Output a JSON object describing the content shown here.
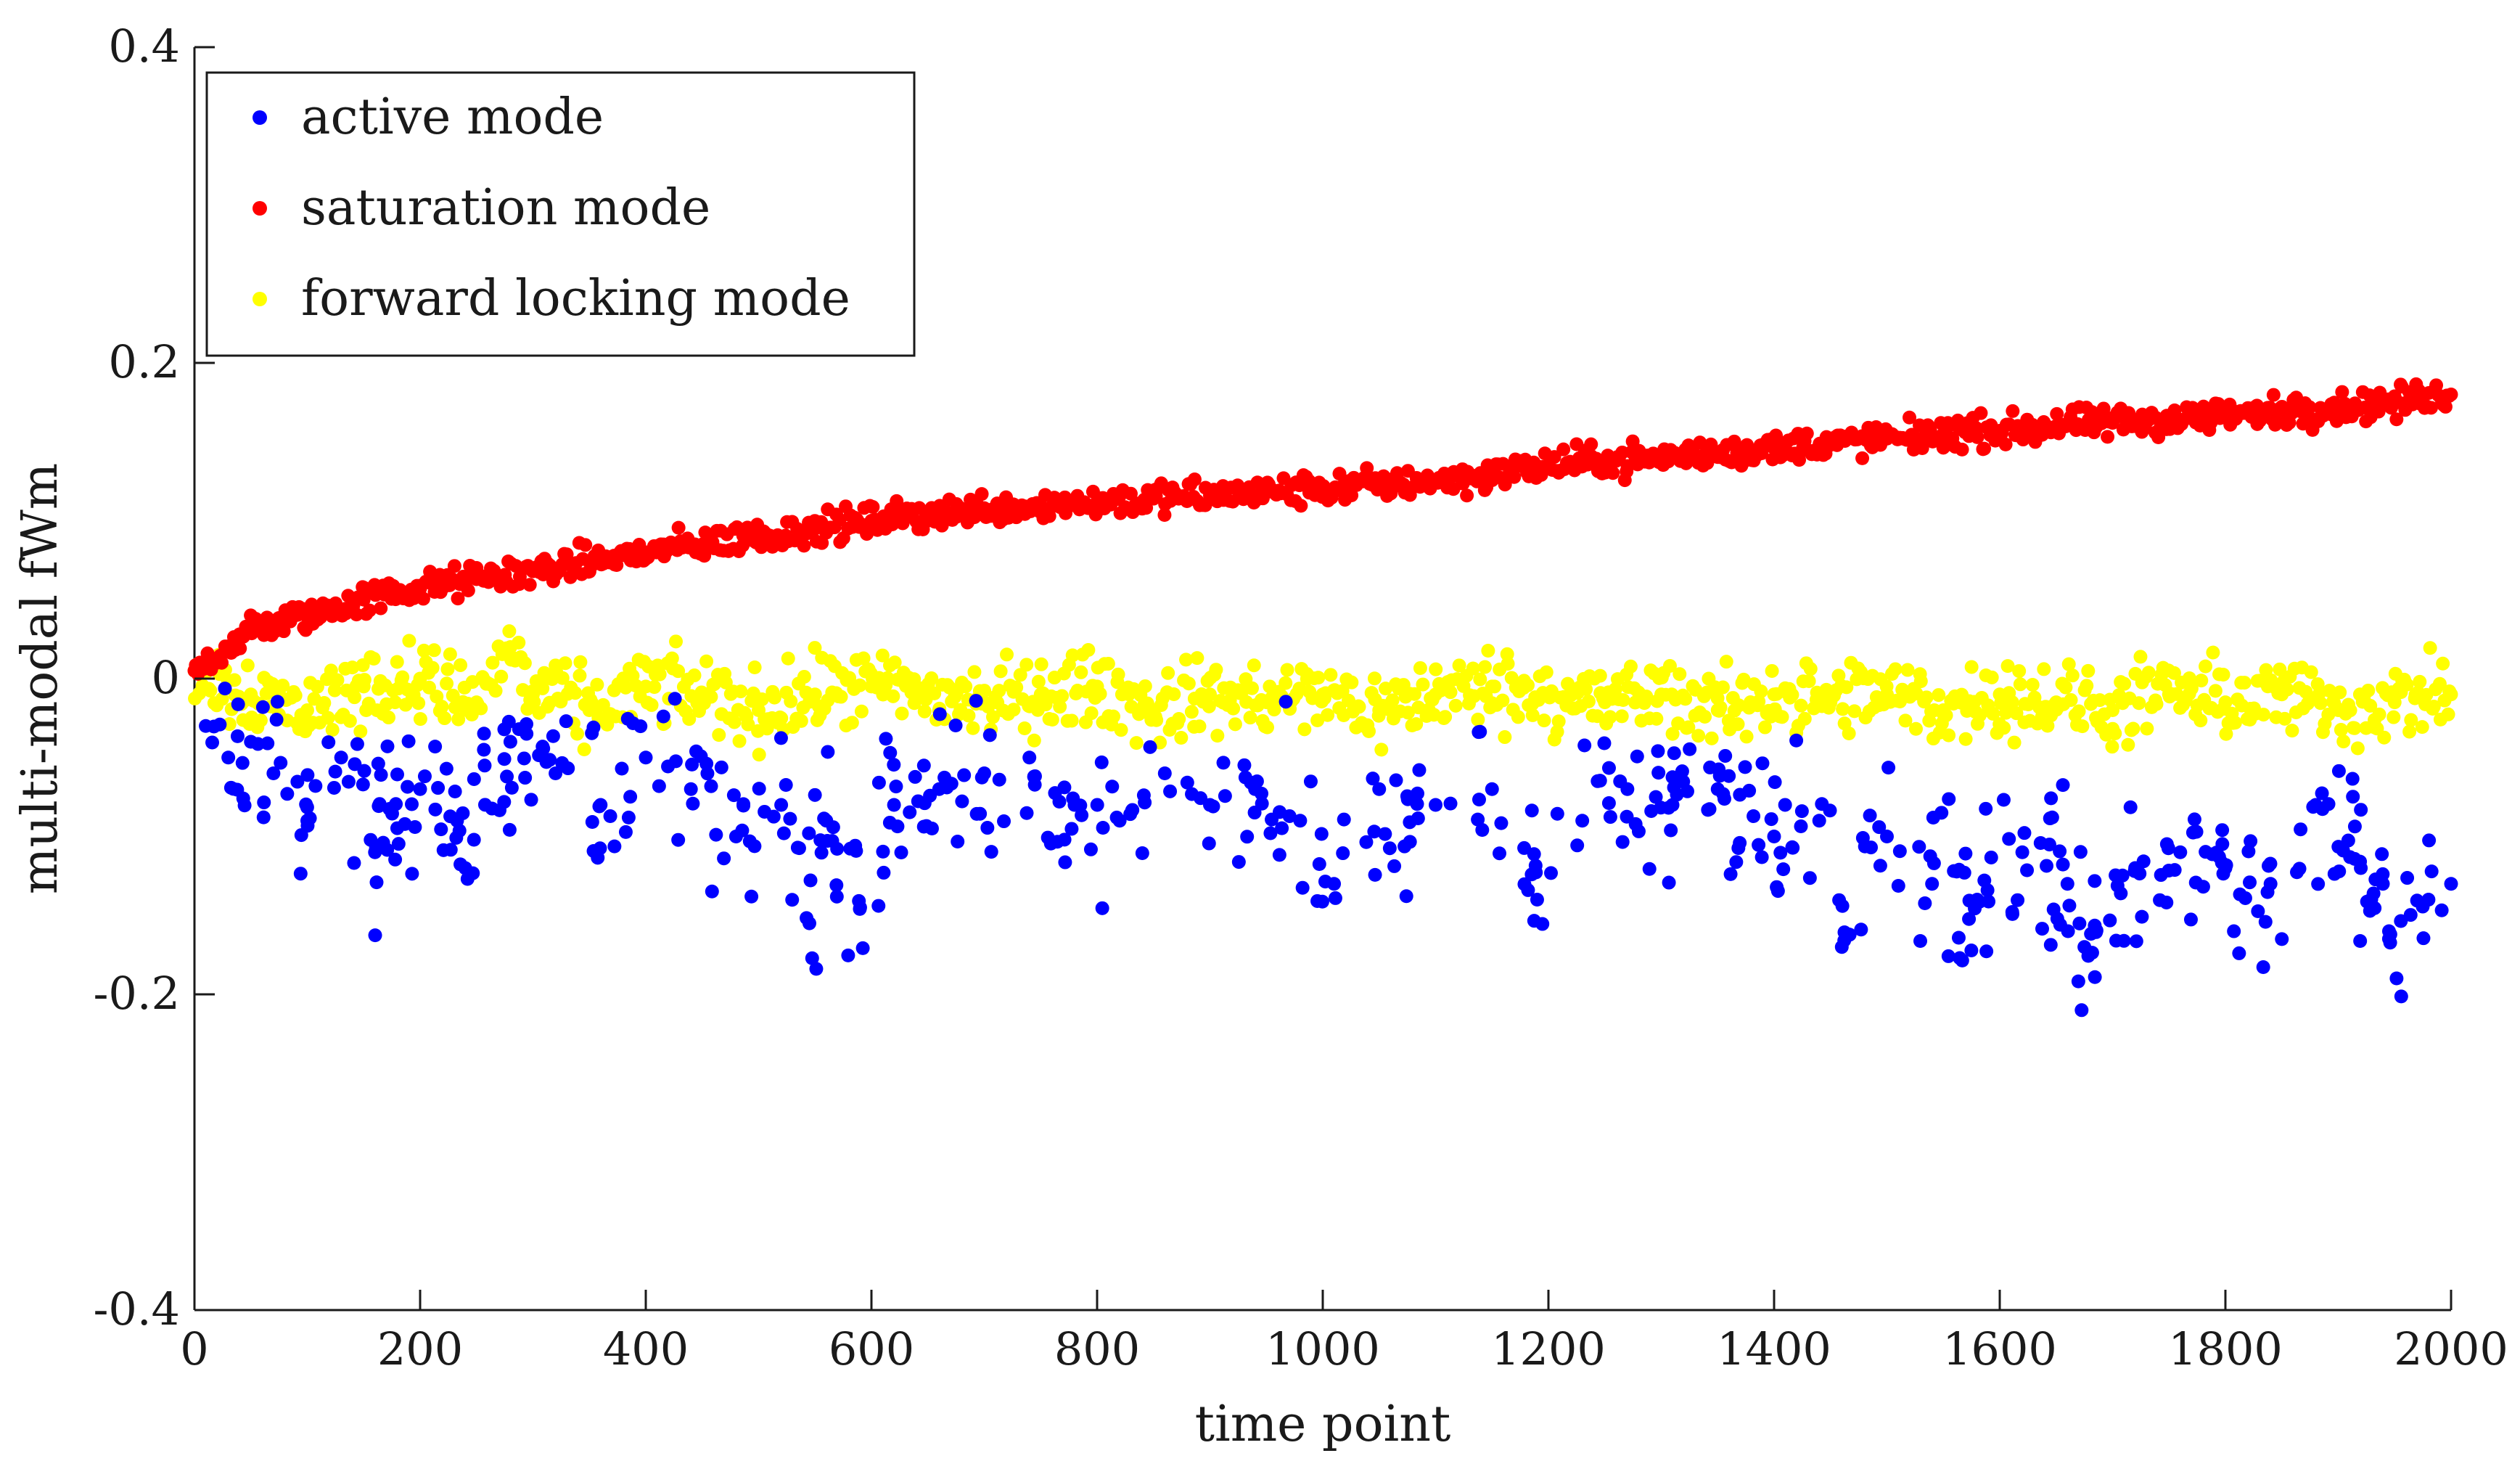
{
  "chart_data": {
    "type": "scatter",
    "title": "",
    "xlabel": "time point",
    "ylabel": "multi-modal fWm",
    "xlim": [
      0,
      2000
    ],
    "ylim": [
      -0.4,
      0.4
    ],
    "x_ticks": [
      0,
      200,
      400,
      600,
      800,
      1000,
      1200,
      1400,
      1600,
      1800,
      2000
    ],
    "x_tick_labels": [
      "0",
      "200",
      "400",
      "600",
      "800",
      "1000",
      "1200",
      "1400",
      "1600",
      "1800",
      "2000"
    ],
    "y_ticks": [
      -0.4,
      -0.2,
      0,
      0.2,
      0.4
    ],
    "y_tick_labels": [
      "-0.4",
      "-0.2",
      "0",
      "0.2",
      "0.4"
    ],
    "grid": false,
    "legend_position": "top-left",
    "series": [
      {
        "name": "active mode",
        "color": "#0000ff",
        "description_trend": "starts near -0.03, drifts to about -0.12 by t=2000 with scatter roughly ±0.05",
        "x": [
          10,
          30,
          50,
          70,
          100,
          130,
          160,
          200,
          240,
          280,
          320,
          360,
          400,
          440,
          480,
          520,
          545,
          560,
          590,
          620,
          660,
          700,
          740,
          780,
          820,
          860,
          900,
          940,
          980,
          1010,
          1050,
          1100,
          1150,
          1190,
          1230,
          1270,
          1310,
          1350,
          1400,
          1440,
          1460,
          1500,
          1540,
          1580,
          1620,
          1660,
          1675,
          1720,
          1760,
          1800,
          1840,
          1850,
          1880,
          1920,
          1945,
          1980,
          2000
        ],
        "y": [
          -0.03,
          -0.05,
          -0.04,
          -0.06,
          -0.09,
          -0.05,
          -0.11,
          -0.07,
          -0.12,
          -0.04,
          -0.06,
          -0.08,
          -0.05,
          -0.07,
          -0.1,
          -0.08,
          -0.155,
          -0.09,
          -0.145,
          -0.08,
          -0.07,
          -0.06,
          -0.05,
          -0.08,
          -0.09,
          -0.06,
          -0.08,
          -0.07,
          -0.09,
          -0.13,
          -0.07,
          -0.08,
          -0.07,
          -0.14,
          -0.09,
          -0.07,
          -0.08,
          -0.07,
          -0.1,
          -0.09,
          -0.17,
          -0.1,
          -0.13,
          -0.14,
          -0.11,
          -0.13,
          -0.17,
          -0.12,
          -0.11,
          -0.12,
          -0.13,
          -0.165,
          -0.08,
          -0.12,
          -0.16,
          -0.14,
          -0.13
        ]
      },
      {
        "name": "saturation mode",
        "color": "#ff0000",
        "description_trend": "rises steadily from about 0.0 at t=0 to about 0.18 at t=2000",
        "x": [
          0,
          50,
          100,
          150,
          200,
          250,
          300,
          350,
          400,
          450,
          500,
          550,
          600,
          650,
          700,
          750,
          800,
          850,
          900,
          950,
          1000,
          1050,
          1100,
          1150,
          1200,
          1250,
          1300,
          1350,
          1400,
          1450,
          1500,
          1550,
          1600,
          1650,
          1700,
          1750,
          1800,
          1850,
          1900,
          1950,
          2000
        ],
        "y": [
          0.005,
          0.03,
          0.04,
          0.05,
          0.057,
          0.063,
          0.068,
          0.074,
          0.08,
          0.085,
          0.09,
          0.095,
          0.1,
          0.104,
          0.108,
          0.11,
          0.112,
          0.114,
          0.116,
          0.118,
          0.12,
          0.123,
          0.126,
          0.129,
          0.135,
          0.138,
          0.14,
          0.143,
          0.146,
          0.149,
          0.152,
          0.155,
          0.157,
          0.16,
          0.162,
          0.164,
          0.167,
          0.169,
          0.172,
          0.175,
          0.18
        ]
      },
      {
        "name": "forward locking mode",
        "color": "#ffff00",
        "description_trend": "flat band centered near -0.01, scattered between about -0.06 and 0.02",
        "x": [
          0,
          50,
          100,
          150,
          200,
          250,
          280,
          300,
          350,
          400,
          450,
          500,
          550,
          600,
          650,
          700,
          750,
          800,
          850,
          900,
          950,
          1000,
          1050,
          1100,
          1150,
          1200,
          1250,
          1300,
          1350,
          1400,
          1450,
          1500,
          1550,
          1600,
          1650,
          1700,
          1750,
          1800,
          1850,
          1900,
          1950,
          2000
        ],
        "y": [
          0.005,
          -0.01,
          -0.02,
          -0.005,
          0.0,
          -0.015,
          0.02,
          -0.01,
          -0.02,
          -0.005,
          -0.01,
          -0.02,
          -0.01,
          -0.005,
          -0.01,
          -0.015,
          -0.01,
          -0.005,
          -0.02,
          -0.01,
          -0.015,
          -0.01,
          -0.02,
          -0.01,
          -0.005,
          -0.01,
          -0.015,
          -0.01,
          -0.02,
          -0.01,
          -0.015,
          -0.01,
          -0.02,
          -0.01,
          -0.015,
          -0.02,
          -0.01,
          -0.015,
          -0.01,
          -0.02,
          -0.015,
          -0.01
        ]
      }
    ],
    "legend": [
      {
        "label": "active mode",
        "color": "#0000ff"
      },
      {
        "label": "saturation mode",
        "color": "#ff0000"
      },
      {
        "label": "forward locking mode",
        "color": "#ffff00"
      }
    ]
  }
}
